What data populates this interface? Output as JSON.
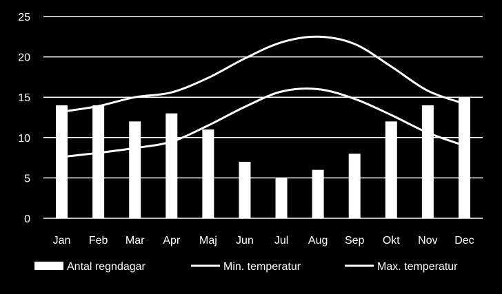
{
  "chart_data": {
    "type": "bar",
    "categories": [
      "Jan",
      "Feb",
      "Mar",
      "Apr",
      "Maj",
      "Jun",
      "Jul",
      "Aug",
      "Sep",
      "Okt",
      "Nov",
      "Dec"
    ],
    "series": [
      {
        "name": "Antal regndagar",
        "type": "bar",
        "values": [
          14,
          14,
          12,
          13,
          11,
          7,
          5,
          6,
          8,
          12,
          14,
          15
        ]
      },
      {
        "name": "Min. temperatur",
        "type": "line",
        "values": [
          7.6,
          8.1,
          8.7,
          9.5,
          11.5,
          13.8,
          15.7,
          16.0,
          14.8,
          12.8,
          10.6,
          9.0
        ]
      },
      {
        "name": "Max. temperatur",
        "type": "line",
        "values": [
          13.2,
          13.9,
          15.0,
          15.6,
          17.4,
          19.8,
          21.8,
          22.5,
          21.6,
          18.8,
          15.8,
          14.2
        ]
      }
    ],
    "y_ticks": [
      "0",
      "5",
      "10",
      "15",
      "20",
      "25"
    ],
    "ylim": [
      0,
      25
    ],
    "grid": true,
    "legend": "bottom",
    "colors": {
      "background": "#000000",
      "bars": "#ffffff",
      "lines": "#ffffff",
      "grid": "#ffffff"
    }
  }
}
